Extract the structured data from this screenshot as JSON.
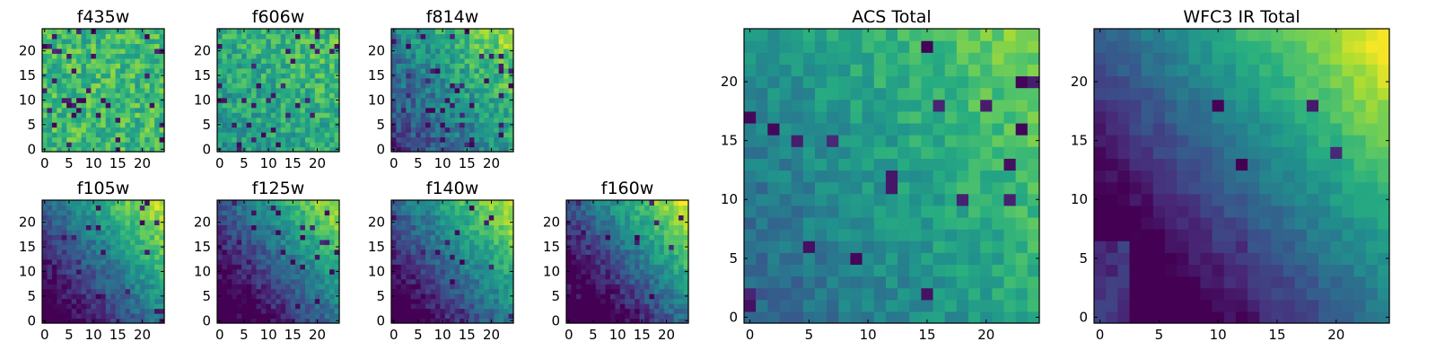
{
  "chart_data": [
    {
      "type": "heatmap",
      "title": "f435w",
      "colormap": "viridis",
      "x_ticks": [
        0,
        5,
        10,
        15,
        20
      ],
      "y_ticks": [
        0,
        5,
        10,
        15,
        20
      ],
      "xlim": [
        -0.5,
        24.5
      ],
      "ylim": [
        -0.5,
        24.5
      ],
      "grid": false,
      "gradient": [
        0,
        0
      ],
      "base": 0.68,
      "noise": 0.16,
      "dark_fraction": 0.06,
      "seed": 11
    },
    {
      "type": "heatmap",
      "title": "f606w",
      "colormap": "viridis",
      "x_ticks": [
        0,
        5,
        10,
        15,
        20
      ],
      "y_ticks": [
        0,
        5,
        10,
        15,
        20
      ],
      "xlim": [
        -0.5,
        24.5
      ],
      "ylim": [
        -0.5,
        24.5
      ],
      "grid": false,
      "gradient": [
        0.05,
        0.05
      ],
      "base": 0.62,
      "noise": 0.15,
      "dark_fraction": 0.05,
      "seed": 23
    },
    {
      "type": "heatmap",
      "title": "f814w",
      "colormap": "viridis",
      "x_ticks": [
        0,
        5,
        10,
        15,
        20
      ],
      "y_ticks": [
        0,
        5,
        10,
        15,
        20
      ],
      "xlim": [
        -0.5,
        24.5
      ],
      "ylim": [
        -0.5,
        24.5
      ],
      "grid": false,
      "gradient": [
        0.2,
        0.15
      ],
      "base": 0.5,
      "noise": 0.15,
      "dark_fraction": 0.06,
      "seed": 37
    },
    {
      "type": "heatmap",
      "title": "f105w",
      "colormap": "viridis",
      "x_ticks": [
        0,
        5,
        10,
        15,
        20
      ],
      "y_ticks": [
        0,
        5,
        10,
        15,
        20
      ],
      "xlim": [
        -0.5,
        24.5
      ],
      "ylim": [
        -0.5,
        24.5
      ],
      "grid": false,
      "gradient": [
        0.3,
        0.25
      ],
      "base": 0.38,
      "noise": 0.1,
      "dark_fraction": 0.03,
      "seed": 41
    },
    {
      "type": "heatmap",
      "title": "f125w",
      "colormap": "viridis",
      "x_ticks": [
        0,
        5,
        10,
        15,
        20
      ],
      "y_ticks": [
        0,
        5,
        10,
        15,
        20
      ],
      "xlim": [
        -0.5,
        24.5
      ],
      "ylim": [
        -0.5,
        24.5
      ],
      "grid": false,
      "gradient": [
        0.3,
        0.25
      ],
      "base": 0.33,
      "noise": 0.1,
      "dark_fraction": 0.04,
      "seed": 53
    },
    {
      "type": "heatmap",
      "title": "f140w",
      "colormap": "viridis",
      "x_ticks": [
        0,
        5,
        10,
        15,
        20
      ],
      "y_ticks": [
        0,
        5,
        10,
        15,
        20
      ],
      "xlim": [
        -0.5,
        24.5
      ],
      "ylim": [
        -0.5,
        24.5
      ],
      "grid": false,
      "gradient": [
        0.3,
        0.25
      ],
      "base": 0.38,
      "noise": 0.1,
      "dark_fraction": 0.03,
      "seed": 67
    },
    {
      "type": "heatmap",
      "title": "f160w",
      "colormap": "viridis",
      "x_ticks": [
        0,
        5,
        10,
        15,
        20
      ],
      "y_ticks": [
        0,
        5,
        10,
        15,
        20
      ],
      "xlim": [
        -0.5,
        24.5
      ],
      "ylim": [
        -0.5,
        24.5
      ],
      "grid": false,
      "gradient": [
        0.35,
        0.3
      ],
      "base": 0.32,
      "noise": 0.1,
      "dark_fraction": 0.04,
      "seed": 79
    },
    {
      "type": "heatmap",
      "title": "ACS Total",
      "colormap": "viridis",
      "x_ticks": [
        0,
        5,
        10,
        15,
        20
      ],
      "y_ticks": [
        0,
        5,
        10,
        15,
        20
      ],
      "xlim": [
        -0.5,
        24.5
      ],
      "ylim": [
        -0.5,
        24.5
      ],
      "grid": false,
      "gradient": [
        0.15,
        0.1
      ],
      "base": 0.55,
      "noise": 0.09,
      "dark_fraction": 0.03,
      "seed": 83
    },
    {
      "type": "heatmap",
      "title": "WFC3 IR Total",
      "colormap": "viridis",
      "x_ticks": [
        0,
        5,
        10,
        15,
        20
      ],
      "y_ticks": [
        0,
        5,
        10,
        15,
        20
      ],
      "xlim": [
        -0.5,
        24.5
      ],
      "ylim": [
        -0.5,
        24.5
      ],
      "grid": false,
      "gradient": [
        0.35,
        0.3
      ],
      "base": 0.35,
      "noise": 0.05,
      "dark_fraction": 0.01,
      "seed": 97
    }
  ]
}
